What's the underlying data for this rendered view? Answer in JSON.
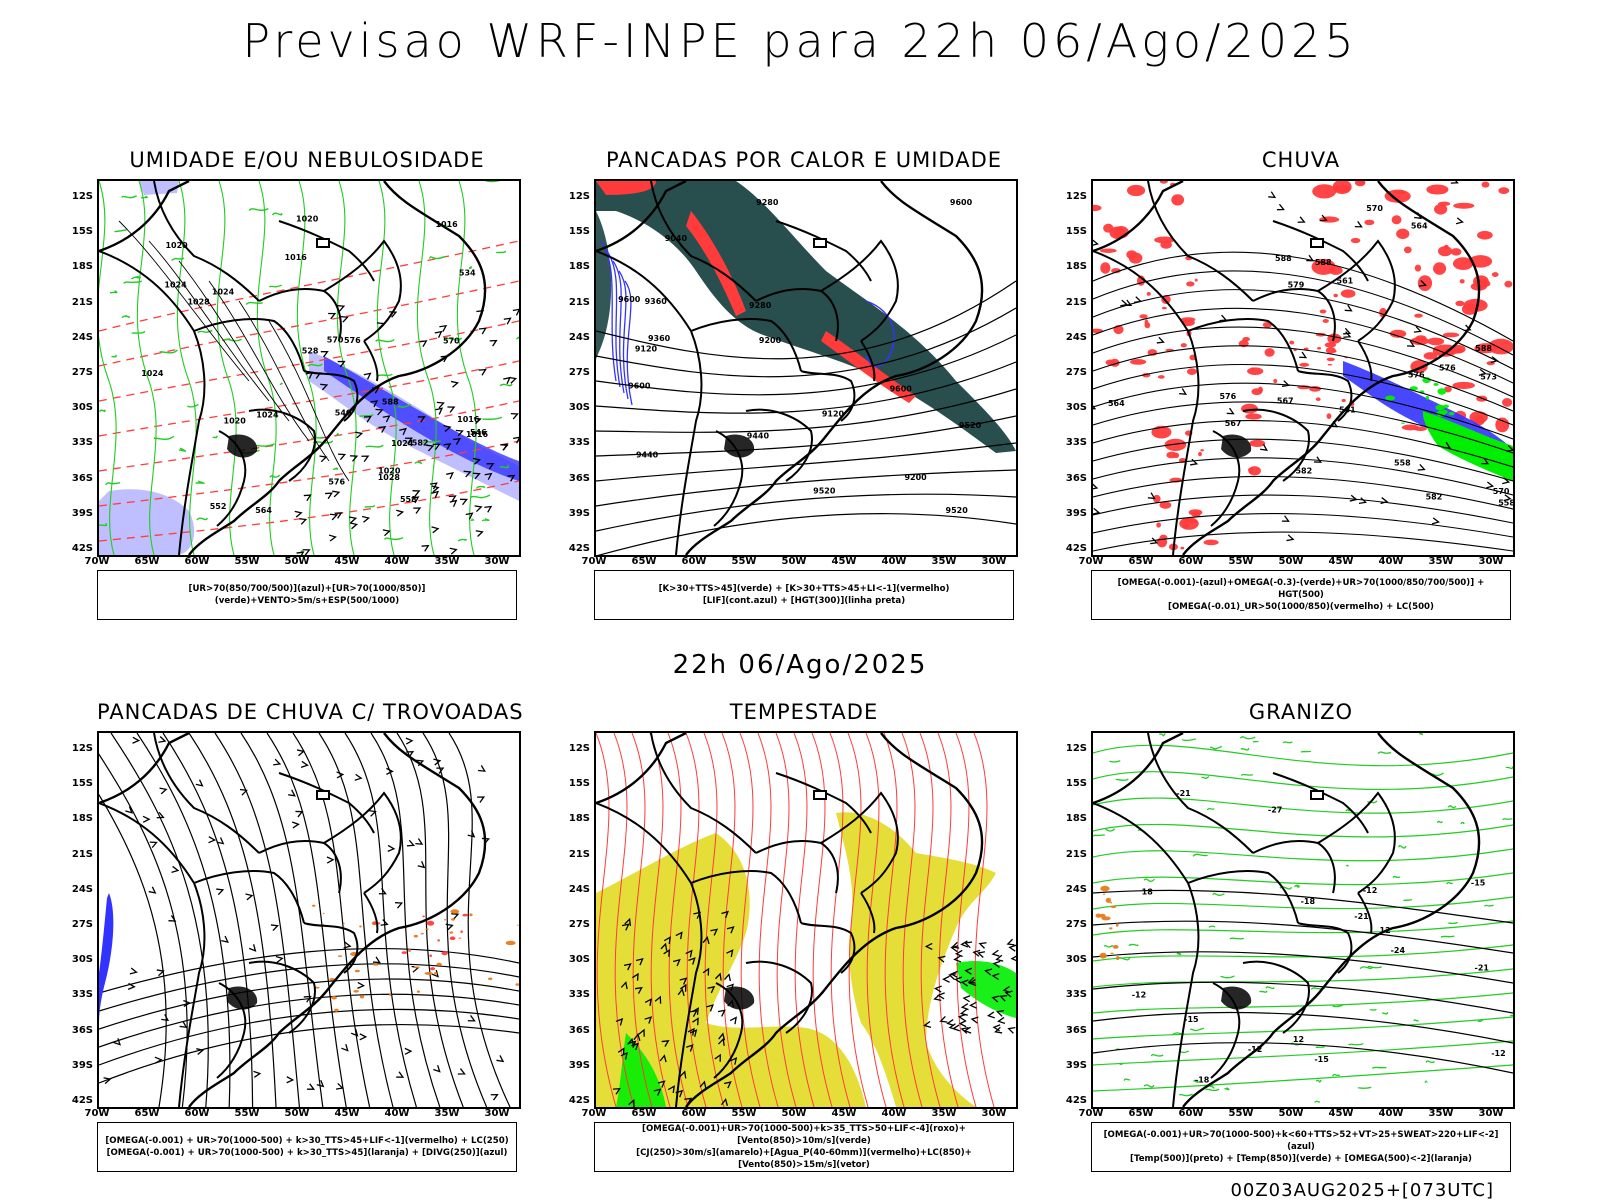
{
  "title": "Previsao WRF-INPE  para 22h 06/Ago/2025",
  "subtitle": "22h 06/Ago/2025",
  "footer": "00Z03AUG2025+[073UTC]",
  "axes": {
    "lat_ticks": [
      "12S",
      "15S",
      "18S",
      "21S",
      "24S",
      "27S",
      "30S",
      "33S",
      "36S",
      "39S",
      "42S"
    ],
    "lon_ticks": [
      "70W",
      "65W",
      "60W",
      "55W",
      "50W",
      "45W",
      "40W",
      "35W",
      "30W"
    ]
  },
  "panels": [
    {
      "title": "UMIDADE E/OU NEBULOSIDADE",
      "legend": [
        "[UR>70(850/700/500)](azul)+[UR>70(1000/850)](verde)+VENTO>5m/s+ESP(500/1000)"
      ],
      "labels": [
        "1016",
        "1016",
        "1016",
        "1016",
        "1020",
        "1020",
        "1020",
        "1020",
        "1024",
        "1024",
        "1024",
        "1024",
        "1024",
        "1028",
        "1028",
        "570",
        "576",
        "576",
        "570",
        "564",
        "558",
        "552",
        "546",
        "540",
        "534",
        "528",
        "582",
        "588"
      ]
    },
    {
      "title": "PANCADAS POR CALOR E UMIDADE",
      "legend": [
        "[K>30+TTS>45](verde) + [K>30+TTS>45+LI<-1](vermelho)",
        "[LIF](cont.azul) + [HGT(300)](linha preta)"
      ],
      "labels": [
        "9600",
        "9600",
        "9600",
        "9600",
        "9520",
        "9520",
        "9520",
        "9440",
        "9440",
        "9360",
        "9360",
        "9280",
        "9280",
        "9200",
        "9200",
        "9120",
        "9120",
        "9040"
      ]
    },
    {
      "title": "CHUVA",
      "legend": [
        "[OMEGA(-0.001)-(azul)+OMEGA(-0.3)-(verde)+UR>70(1000/850/700/500)] + HGT(500)",
        "[OMEGA(-0.01)_UR>50(1000/850)(vermelho) + LC(500)"
      ],
      "labels": [
        "588",
        "588",
        "588",
        "582",
        "579",
        "576",
        "573",
        "570",
        "567",
        "564",
        "561",
        "558",
        "576",
        "570",
        "567",
        "564",
        "561",
        "558",
        "582",
        "576"
      ]
    },
    {
      "title": "PANCADAS DE CHUVA C/ TROVOADAS",
      "legend": [
        "[OMEGA(-0.001) + UR>70(1000-500) + k>30_TTS>45+LIF<-1](vermelho) + LC(250)",
        "[OMEGA(-0.001) + UR>70(1000-500) + k>30_TTS>45](laranja) + [DIVG(250)](azul)"
      ],
      "labels": []
    },
    {
      "title": "TEMPESTADE",
      "legend": [
        "[OMEGA(-0.001)+UR>70(1000-500)+k>35_TTS>50+LIF<-4](roxo)+[Vento(850)>10m/s](verde)",
        "[CJ(250)>30m/s](amarelo)+[Agua_P(40-60mm)](vermelho)+LC(850)+[Vento(850)>15m/s](vetor)"
      ],
      "labels": []
    },
    {
      "title": "GRANIZO",
      "legend": [
        "[OMEGA(-0.001)+UR>70(1000-500)+k<60+TTS>52+VT>25+SWEAT>220+LIF<-2](azul)",
        "[Temp(500)](preto) + [Temp(850)](verde) + [OMEGA(500)<-2](laranja)"
      ],
      "labels": [
        "-12",
        "-12",
        "-12",
        "-12",
        "-15",
        "-15",
        "-15",
        "-18",
        "-18",
        "-21",
        "-21",
        "-21",
        "-24",
        "-27",
        "12",
        "12",
        "18"
      ]
    }
  ],
  "colors": {
    "blue": "#3333ff",
    "light_blue": "#b4b4ff",
    "green": "#22cc22",
    "bright_green": "#00ee00",
    "red": "#ff3b3b",
    "dark_teal": "#1d4444",
    "orange": "#e87a1a",
    "yellow": "#e4dc2e",
    "black": "#000000"
  }
}
